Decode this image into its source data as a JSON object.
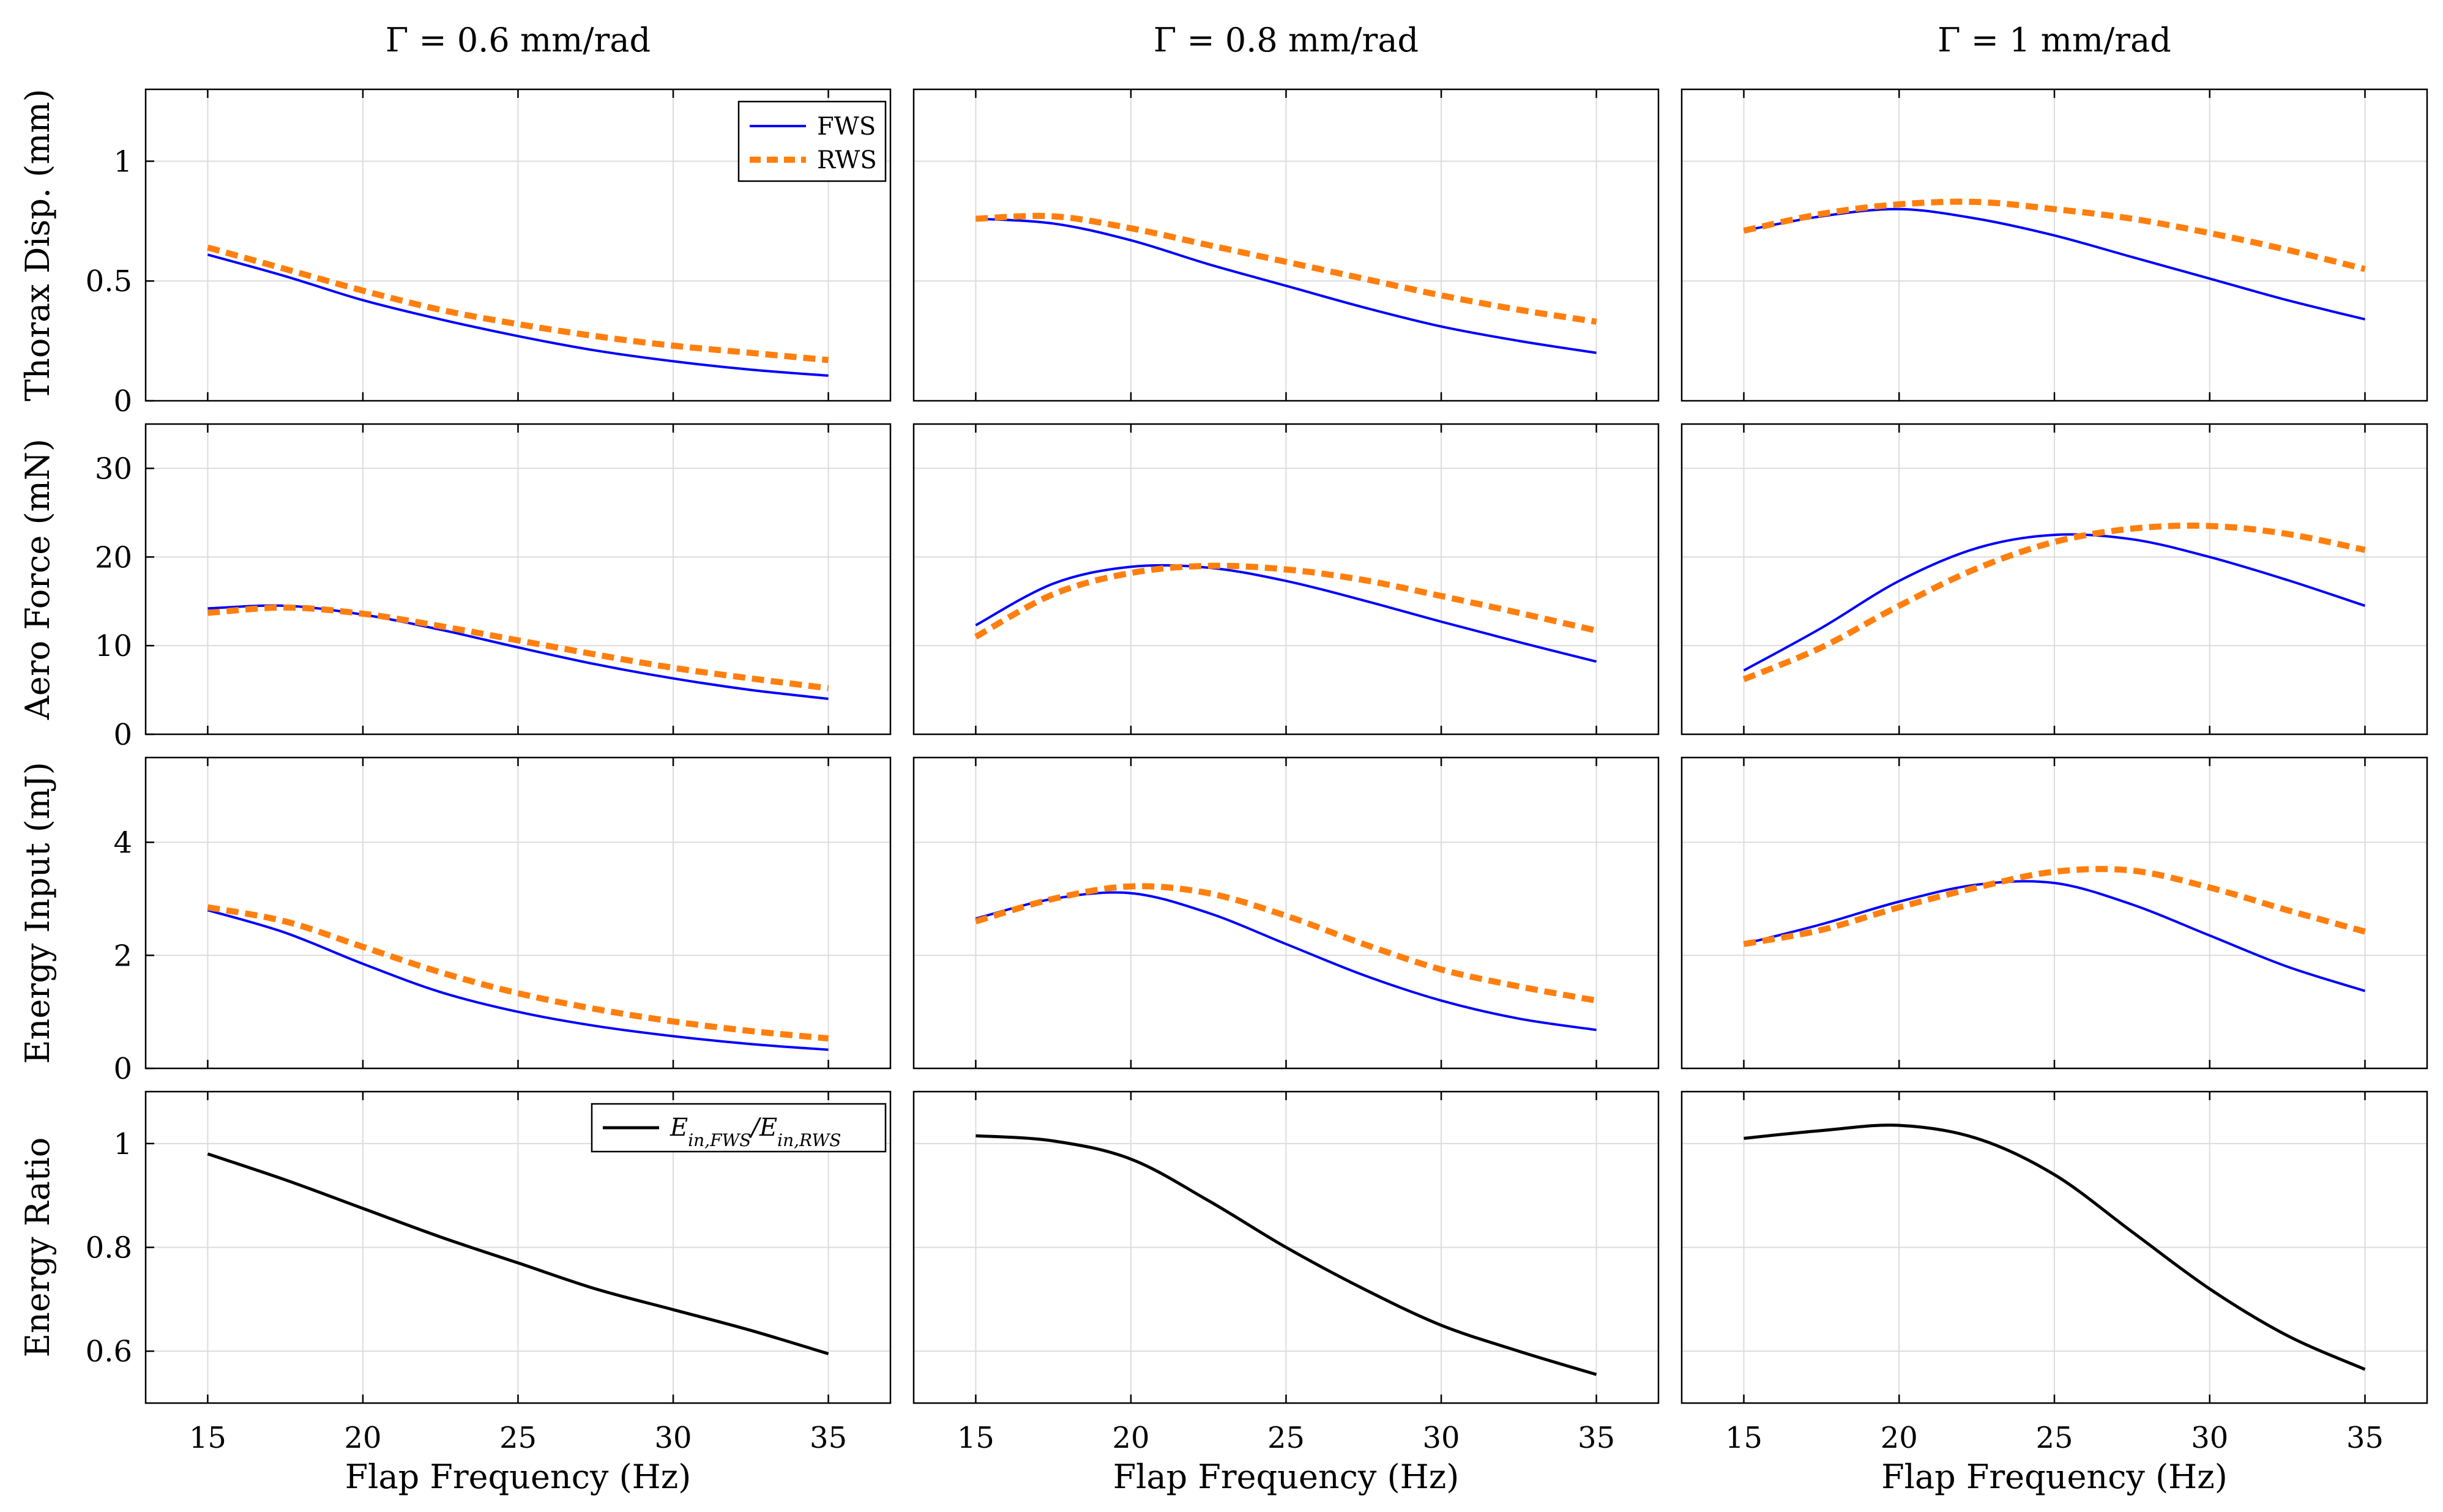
{
  "figure": {
    "column_titles": [
      "Γ = 0.6 mm/rad",
      "Γ = 0.8 mm/rad",
      "Γ = 1 mm/rad"
    ],
    "xlabel": "Flap Frequency (Hz)",
    "row_ylabels": [
      "Thorax Disp. (mm)",
      "Aero Force (mN)",
      "Energy Input (mJ)",
      "Energy Ratio"
    ],
    "legends": {
      "displacement": [
        {
          "label": "FWS",
          "color": "#0000ff",
          "style": "solid"
        },
        {
          "label": "RWS",
          "color": "#ff7f0e",
          "style": "dashed"
        }
      ],
      "ratio": {
        "label_main": "E",
        "label_sub1": "in,FWS",
        "label_sep": "/",
        "label_sub2": "in,RWS",
        "color": "#000000"
      }
    }
  },
  "chart_data": [
    {
      "type": "line",
      "row": 0,
      "col": 0,
      "title": "Γ = 0.6 mm/rad",
      "ylabel": "Thorax Disp. (mm)",
      "xlim": [
        13,
        37
      ],
      "ylim": [
        0,
        1.3
      ],
      "yticks": [
        0,
        0.5,
        1
      ],
      "xticks": [
        15,
        20,
        25,
        30,
        35
      ],
      "grid": true,
      "legend": "top-right",
      "x": [
        15,
        17.5,
        20,
        22.5,
        25,
        27.5,
        30,
        32.5,
        35
      ],
      "series": [
        {
          "name": "FWS",
          "values": [
            0.61,
            0.52,
            0.42,
            0.34,
            0.27,
            0.21,
            0.165,
            0.13,
            0.105
          ]
        },
        {
          "name": "RWS",
          "values": [
            0.64,
            0.55,
            0.46,
            0.38,
            0.32,
            0.27,
            0.23,
            0.2,
            0.17
          ]
        }
      ]
    },
    {
      "type": "line",
      "row": 0,
      "col": 1,
      "title": "Γ = 0.8 mm/rad",
      "ylabel": "Thorax Disp. (mm)",
      "xlim": [
        13,
        37
      ],
      "ylim": [
        0,
        1.3
      ],
      "yticks": [
        0,
        0.5,
        1
      ],
      "xticks": [
        15,
        20,
        25,
        30,
        35
      ],
      "grid": true,
      "x": [
        15,
        17.5,
        20,
        22.5,
        25,
        27.5,
        30,
        32.5,
        35
      ],
      "series": [
        {
          "name": "FWS",
          "values": [
            0.76,
            0.74,
            0.67,
            0.57,
            0.48,
            0.39,
            0.31,
            0.25,
            0.2
          ]
        },
        {
          "name": "RWS",
          "values": [
            0.76,
            0.77,
            0.72,
            0.65,
            0.58,
            0.51,
            0.44,
            0.38,
            0.33
          ]
        }
      ]
    },
    {
      "type": "line",
      "row": 0,
      "col": 2,
      "title": "Γ = 1 mm/rad",
      "ylabel": "Thorax Disp. (mm)",
      "xlim": [
        13,
        37
      ],
      "ylim": [
        0,
        1.3
      ],
      "yticks": [
        0,
        0.5,
        1
      ],
      "xticks": [
        15,
        20,
        25,
        30,
        35
      ],
      "grid": true,
      "x": [
        15,
        17.5,
        20,
        22.5,
        25,
        27.5,
        30,
        32.5,
        35
      ],
      "series": [
        {
          "name": "FWS",
          "values": [
            0.71,
            0.77,
            0.8,
            0.76,
            0.69,
            0.6,
            0.51,
            0.42,
            0.34
          ]
        },
        {
          "name": "RWS",
          "values": [
            0.71,
            0.78,
            0.82,
            0.83,
            0.8,
            0.76,
            0.7,
            0.63,
            0.55
          ]
        }
      ]
    },
    {
      "type": "line",
      "row": 1,
      "col": 0,
      "ylabel": "Aero Force (mN)",
      "xlim": [
        13,
        37
      ],
      "ylim": [
        0,
        35
      ],
      "yticks": [
        0,
        10,
        20,
        30
      ],
      "xticks": [
        15,
        20,
        25,
        30,
        35
      ],
      "grid": true,
      "x": [
        15,
        17.5,
        20,
        22.5,
        25,
        27.5,
        30,
        32.5,
        35
      ],
      "series": [
        {
          "name": "FWS",
          "values": [
            14.2,
            14.5,
            13.5,
            11.8,
            9.8,
            7.9,
            6.3,
            5,
            4
          ]
        },
        {
          "name": "RWS",
          "values": [
            13.7,
            14.3,
            13.6,
            12.2,
            10.6,
            9,
            7.5,
            6.3,
            5.2
          ]
        }
      ]
    },
    {
      "type": "line",
      "row": 1,
      "col": 1,
      "ylabel": "Aero Force (mN)",
      "xlim": [
        13,
        37
      ],
      "ylim": [
        0,
        35
      ],
      "yticks": [
        0,
        10,
        20,
        30
      ],
      "xticks": [
        15,
        20,
        25,
        30,
        35
      ],
      "grid": true,
      "x": [
        15,
        17.5,
        20,
        22.5,
        25,
        27.5,
        30,
        32.5,
        35
      ],
      "series": [
        {
          "name": "FWS",
          "values": [
            12.3,
            17,
            18.9,
            18.8,
            17.3,
            15.1,
            12.7,
            10.4,
            8.2
          ]
        },
        {
          "name": "RWS",
          "values": [
            11,
            15.8,
            18.2,
            19,
            18.6,
            17.4,
            15.6,
            13.7,
            11.7
          ]
        }
      ]
    },
    {
      "type": "line",
      "row": 1,
      "col": 2,
      "ylabel": "Aero Force (mN)",
      "xlim": [
        13,
        37
      ],
      "ylim": [
        0,
        35
      ],
      "yticks": [
        0,
        10,
        20,
        30
      ],
      "xticks": [
        15,
        20,
        25,
        30,
        35
      ],
      "grid": true,
      "x": [
        15,
        17.5,
        20,
        22.5,
        25,
        27.5,
        30,
        32.5,
        35
      ],
      "series": [
        {
          "name": "FWS",
          "values": [
            7.2,
            12,
            17.3,
            21,
            22.5,
            22,
            20,
            17.4,
            14.5
          ]
        },
        {
          "name": "RWS",
          "values": [
            6.2,
            9.8,
            14.5,
            18.7,
            21.7,
            23.2,
            23.5,
            22.6,
            20.8
          ]
        }
      ]
    },
    {
      "type": "line",
      "row": 2,
      "col": 0,
      "ylabel": "Energy Input (mJ)",
      "xlim": [
        13,
        37
      ],
      "ylim": [
        0,
        5.5
      ],
      "yticks": [
        0,
        2,
        4
      ],
      "xticks": [
        15,
        20,
        25,
        30,
        35
      ],
      "grid": true,
      "x": [
        15,
        17.5,
        20,
        22.5,
        25,
        27.5,
        30,
        32.5,
        35
      ],
      "series": [
        {
          "name": "FWS",
          "values": [
            2.8,
            2.4,
            1.85,
            1.35,
            1,
            0.75,
            0.57,
            0.43,
            0.33
          ]
        },
        {
          "name": "RWS",
          "values": [
            2.85,
            2.6,
            2.15,
            1.7,
            1.33,
            1.05,
            0.83,
            0.66,
            0.53
          ]
        }
      ]
    },
    {
      "type": "line",
      "row": 2,
      "col": 1,
      "ylabel": "Energy Input (mJ)",
      "xlim": [
        13,
        37
      ],
      "ylim": [
        0,
        5.5
      ],
      "yticks": [
        0,
        2,
        4
      ],
      "xticks": [
        15,
        20,
        25,
        30,
        35
      ],
      "grid": true,
      "x": [
        15,
        17.5,
        20,
        22.5,
        25,
        27.5,
        30,
        32.5,
        35
      ],
      "series": [
        {
          "name": "FWS",
          "values": [
            2.65,
            3,
            3.1,
            2.75,
            2.2,
            1.65,
            1.2,
            0.88,
            0.68
          ]
        },
        {
          "name": "RWS",
          "values": [
            2.6,
            3,
            3.22,
            3.1,
            2.7,
            2.2,
            1.75,
            1.45,
            1.2
          ]
        }
      ]
    },
    {
      "type": "line",
      "row": 2,
      "col": 2,
      "ylabel": "Energy Input (mJ)",
      "xlim": [
        13,
        37
      ],
      "ylim": [
        0,
        5.5
      ],
      "yticks": [
        0,
        2,
        4
      ],
      "xticks": [
        15,
        20,
        25,
        30,
        35
      ],
      "grid": true,
      "x": [
        15,
        17.5,
        20,
        22.5,
        25,
        27.5,
        30,
        32.5,
        35
      ],
      "series": [
        {
          "name": "FWS",
          "values": [
            2.2,
            2.55,
            2.95,
            3.25,
            3.28,
            2.9,
            2.35,
            1.8,
            1.37
          ]
        },
        {
          "name": "RWS",
          "values": [
            2.2,
            2.45,
            2.85,
            3.2,
            3.48,
            3.5,
            3.2,
            2.8,
            2.42
          ]
        }
      ]
    },
    {
      "type": "line",
      "row": 3,
      "col": 0,
      "ylabel": "Energy Ratio",
      "xlabel": "Flap Frequency (Hz)",
      "xlim": [
        13,
        37
      ],
      "ylim": [
        0.5,
        1.1
      ],
      "yticks": [
        0.6,
        0.8,
        1
      ],
      "xticks": [
        15,
        20,
        25,
        30,
        35
      ],
      "grid": true,
      "legend": "top-right",
      "x": [
        15,
        17.5,
        20,
        22.5,
        25,
        27.5,
        30,
        32.5,
        35
      ],
      "series": [
        {
          "name": "E in,FWS / E in,RWS",
          "values": [
            0.98,
            0.93,
            0.875,
            0.82,
            0.77,
            0.72,
            0.68,
            0.64,
            0.595
          ]
        }
      ]
    },
    {
      "type": "line",
      "row": 3,
      "col": 1,
      "ylabel": "Energy Ratio",
      "xlabel": "Flap Frequency (Hz)",
      "xlim": [
        13,
        37
      ],
      "ylim": [
        0.5,
        1.1
      ],
      "yticks": [
        0.6,
        0.8,
        1
      ],
      "xticks": [
        15,
        20,
        25,
        30,
        35
      ],
      "grid": true,
      "x": [
        15,
        17.5,
        20,
        22.5,
        25,
        27.5,
        30,
        32.5,
        35
      ],
      "series": [
        {
          "name": "E in,FWS / E in,RWS",
          "values": [
            1.015,
            1.005,
            0.97,
            0.89,
            0.8,
            0.72,
            0.65,
            0.6,
            0.555
          ]
        }
      ]
    },
    {
      "type": "line",
      "row": 3,
      "col": 2,
      "ylabel": "Energy Ratio",
      "xlabel": "Flap Frequency (Hz)",
      "xlim": [
        13,
        37
      ],
      "ylim": [
        0.5,
        1.1
      ],
      "yticks": [
        0.6,
        0.8,
        1
      ],
      "xticks": [
        15,
        20,
        25,
        30,
        35
      ],
      "grid": true,
      "x": [
        15,
        17.5,
        20,
        22.5,
        25,
        27.5,
        30,
        32.5,
        35
      ],
      "series": [
        {
          "name": "E in,FWS / E in,RWS",
          "values": [
            1.01,
            1.025,
            1.035,
            1.01,
            0.94,
            0.83,
            0.72,
            0.63,
            0.565
          ]
        }
      ]
    }
  ]
}
